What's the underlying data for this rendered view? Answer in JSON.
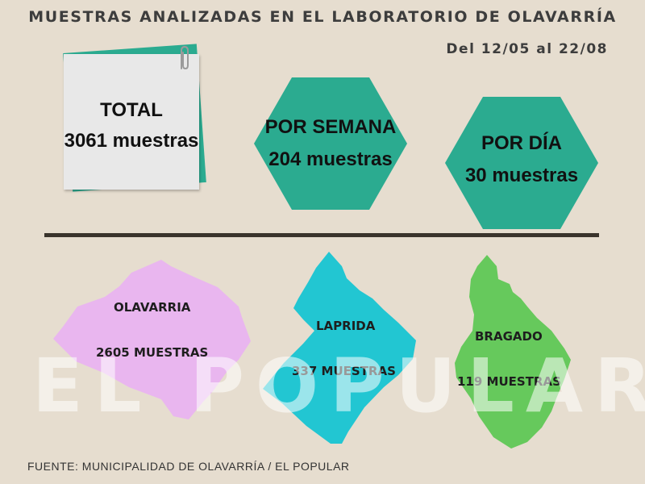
{
  "header": {
    "title": "MUESTRAS ANALIZADAS EN EL LABORATORIO DE OLAVARRÍA",
    "date_range": "Del 12/05 al 22/08"
  },
  "stats": {
    "total": {
      "label": "TOTAL",
      "value": "3061 muestras"
    },
    "weekly": {
      "label": "POR SEMANA",
      "value": "204 muestras"
    },
    "daily": {
      "label": "POR DÍA",
      "value": "30 muestras"
    }
  },
  "regions": [
    {
      "name": "OLAVARRIA",
      "value": "2605 MUESTRAS",
      "color": "#e9b6ef"
    },
    {
      "name": "LAPRIDA",
      "value": "337 MUESTRAS",
      "color": "#22c6d2"
    },
    {
      "name": "BRAGADO",
      "value": "119 MUESTRAS",
      "color": "#66c95c"
    }
  ],
  "colors": {
    "background": "#e6ddcf",
    "accent": "#2bab90",
    "note": "#e8e8e8",
    "divider": "#3a342c"
  },
  "watermark": "EL POPULAR",
  "footer": "FUENTE: MUNICIPALIDAD DE OLAVARRÍA / EL POPULAR"
}
